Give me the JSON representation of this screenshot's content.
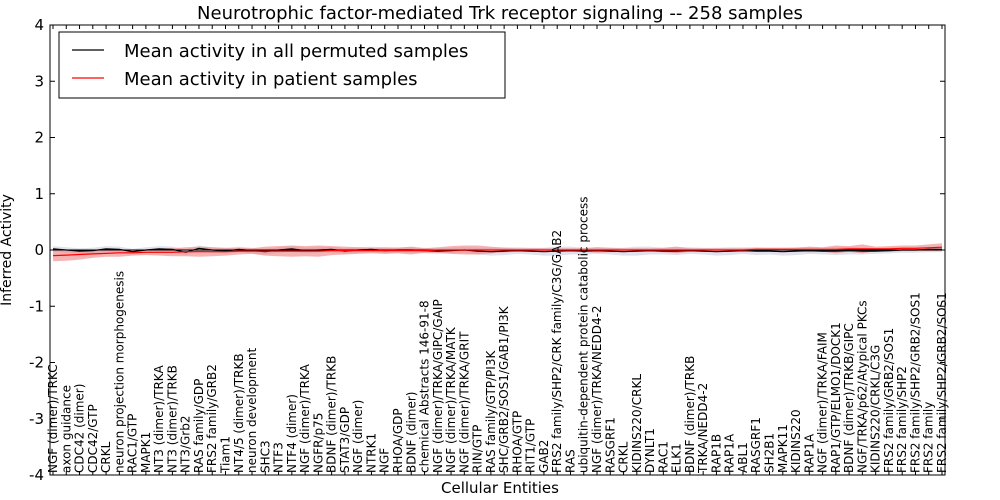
{
  "chart_data": {
    "type": "line",
    "title": "Neurotrophic factor-mediated Trk receptor signaling -- 258 samples",
    "xlabel": "Cellular Entities",
    "ylabel": "Inferred Activity",
    "ylim": [
      -4,
      4
    ],
    "yticks": [
      -4,
      -3,
      -2,
      -1,
      0,
      1,
      2,
      3,
      4
    ],
    "legend_position": "top-left",
    "colors": {
      "permuted": "#000000",
      "patient": "#ff0000",
      "patient_band": "#f08080",
      "permuted_band": "#c8c8dc"
    },
    "categories": [
      "NGF (dimer)/TRKC",
      "axon guidance",
      "CDC42 (dimer)",
      "CDC42/GTP",
      "CRKL",
      "neuron projection morphogenesis",
      "RAC1/GTP",
      "MAPK1",
      "NT3 (dimer)/TRKA",
      "NT3 (dimer)/TRKB",
      "NT3/Grb2",
      "RAS family/GDP",
      "FRS2 family/GRB2",
      "Tiam1",
      "NT4/5 (dimer)/TRKB",
      "neuron development",
      "SHC3",
      "NTF3",
      "NTF4 (dimer)",
      "NGF (dimer)/TRKA",
      "NGFR/p75",
      "BDNF (dimer)/TRKB",
      "STAT3/GDP",
      "NGF (dimer)",
      "NTRK1",
      "NGF",
      "RHOA/GDP",
      "BDNF (dimer)",
      "chemical Abstracts 146-91-8",
      "NGF (dimer)/TRKA/GIPC/GAIP",
      "NGF (dimer)/TRKA/MATK",
      "NGF (dimer)/TRKA/GRIT",
      "RIN/GTP",
      "RAS family/GTP/PI3K",
      "SHC/GRB2/SOS1/GAB1/PI3K",
      "RHOA/GTP",
      "RIT1/GTP",
      "GAB2",
      "FRS2 family/SHP2/CRK family/C3G/GAB2",
      "RAS",
      "ubiquitin-dependent protein catabolic process",
      "NGF (dimer)/TRKA/NEDD4-2",
      "RASGRF1",
      "CRKL",
      "KIDINS220/CRKL",
      "DYNLT1",
      "RAC1",
      "ELK1",
      "BDNF (dimer)/TRKB",
      "TRKA/NEDD4-2",
      "RAP1B",
      "RAP1A",
      "ABL1",
      "RASGRF1",
      "SH2B1",
      "MAPK11",
      "KIDINS220",
      "RAP1A",
      "NGF (dimer)/TRKA/FAIM",
      "RAP1/GTP/ELMO1/DOCK1",
      "BDNF (dimer)/TRKB/GIPC",
      "NGF/TRKA/p62/Atypical PKCs",
      "KIDINS220/CRKL/C3G",
      "FRS2 family/GRB2/SOS1",
      "FRS2 family/SHP2",
      "FRS2 family/SHP2/GRB2/SOS1",
      "FRS2 family",
      "FRS2 family/SHP2/GRB2/SOS1"
    ],
    "series": [
      {
        "name": "Mean activity in all permuted samples",
        "values": [
          0.02,
          0.0,
          -0.02,
          -0.01,
          0.02,
          0.01,
          -0.03,
          0.0,
          0.02,
          0.01,
          -0.04,
          0.03,
          0.0,
          -0.02,
          0.01,
          -0.01,
          -0.03,
          0.0,
          0.02,
          -0.01,
          0.0,
          0.01,
          -0.02,
          0.0,
          0.01,
          -0.01,
          0.0,
          0.0,
          -0.01,
          -0.02,
          -0.01,
          0.0,
          -0.02,
          -0.03,
          -0.02,
          -0.01,
          -0.02,
          -0.03,
          -0.02,
          -0.01,
          -0.02,
          -0.01,
          -0.02,
          -0.03,
          -0.02,
          -0.01,
          -0.02,
          -0.02,
          -0.01,
          -0.02,
          -0.03,
          -0.02,
          -0.01,
          -0.02,
          -0.02,
          -0.03,
          -0.02,
          -0.01,
          -0.02,
          -0.02,
          -0.01,
          -0.02,
          -0.02,
          -0.01,
          0.0,
          0.0,
          0.01,
          0.01
        ]
      },
      {
        "name": "Mean activity in patient samples",
        "values": [
          -0.1,
          -0.09,
          -0.08,
          -0.07,
          -0.06,
          -0.05,
          -0.05,
          -0.04,
          -0.04,
          -0.04,
          -0.03,
          -0.03,
          -0.03,
          -0.03,
          -0.02,
          -0.02,
          -0.02,
          -0.02,
          -0.02,
          -0.02,
          -0.02,
          -0.01,
          -0.01,
          -0.01,
          -0.01,
          -0.01,
          -0.01,
          -0.01,
          -0.01,
          0.0,
          0.0,
          0.0,
          0.0,
          0.0,
          0.0,
          0.0,
          0.0,
          0.0,
          0.0,
          0.0,
          0.0,
          0.0,
          0.0,
          0.0,
          0.0,
          0.0,
          0.0,
          0.0,
          0.0,
          0.0,
          0.0,
          0.0,
          0.0,
          0.01,
          0.01,
          0.01,
          0.01,
          0.01,
          0.01,
          0.01,
          0.02,
          0.02,
          0.02,
          0.02,
          0.03,
          0.03,
          0.04,
          0.05
        ]
      }
    ],
    "patient_band_halfwidth": [
      0.1,
      0.1,
      0.09,
      0.07,
      0.06,
      0.07,
      0.05,
      0.05,
      0.06,
      0.07,
      0.08,
      0.09,
      0.08,
      0.07,
      0.06,
      0.05,
      0.08,
      0.09,
      0.1,
      0.09,
      0.1,
      0.08,
      0.07,
      0.06,
      0.05,
      0.06,
      0.05,
      0.07,
      0.04,
      0.05,
      0.07,
      0.08,
      0.08,
      0.06,
      0.04,
      0.03,
      0.03,
      0.03,
      0.03,
      0.03,
      0.03,
      0.05,
      0.04,
      0.03,
      0.03,
      0.03,
      0.04,
      0.06,
      0.03,
      0.03,
      0.03,
      0.03,
      0.03,
      0.03,
      0.03,
      0.03,
      0.03,
      0.05,
      0.04,
      0.07,
      0.05,
      0.08,
      0.04,
      0.05,
      0.05,
      0.05,
      0.06,
      0.07
    ],
    "permuted_band_halfwidth": [
      0.05,
      0.05,
      0.05,
      0.05,
      0.05,
      0.05,
      0.05,
      0.05,
      0.05,
      0.05,
      0.05,
      0.05,
      0.05,
      0.05,
      0.05,
      0.05,
      0.05,
      0.05,
      0.05,
      0.05,
      0.05,
      0.05,
      0.05,
      0.05,
      0.05,
      0.05,
      0.05,
      0.05,
      0.05,
      0.05,
      0.05,
      0.05,
      0.06,
      0.07,
      0.07,
      0.06,
      0.06,
      0.07,
      0.08,
      0.07,
      0.06,
      0.06,
      0.06,
      0.07,
      0.08,
      0.07,
      0.06,
      0.07,
      0.06,
      0.06,
      0.07,
      0.07,
      0.06,
      0.07,
      0.06,
      0.07,
      0.07,
      0.06,
      0.06,
      0.07,
      0.07,
      0.06,
      0.05,
      0.05,
      0.05,
      0.05,
      0.05,
      0.05
    ]
  }
}
